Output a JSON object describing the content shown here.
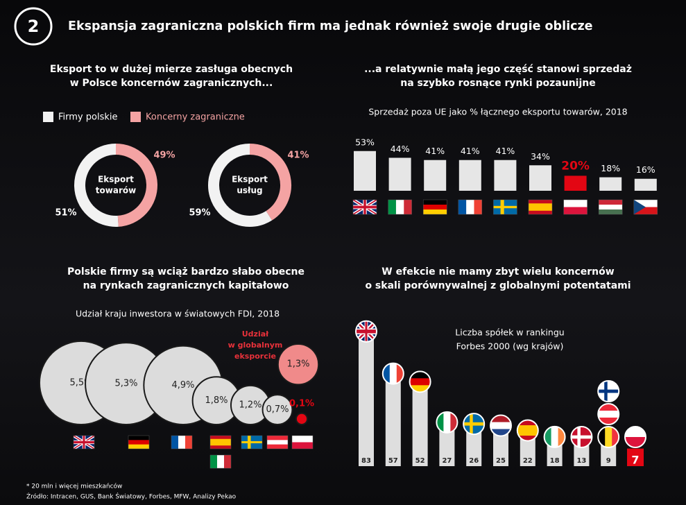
{
  "header": {
    "number": "2",
    "title": "Ekspansja zagraniczna polskich firm ma jednak również swoje drugie oblicze"
  },
  "chart_data": [
    {
      "type": "donut",
      "title": [
        "Eksport to w dużej mierze zasługa obecnych",
        "w Polsce koncernów zagranicznych..."
      ],
      "categories": [
        "Firmy polskie",
        "Koncerny zagraniczne"
      ],
      "colors": [
        "#f2f2f2",
        "#f4a3a3"
      ],
      "donuts": [
        {
          "label": [
            "Eksport",
            "towarów"
          ],
          "values": [
            51,
            49
          ],
          "value_labels": [
            "51%",
            "49%"
          ]
        },
        {
          "label": [
            "Eksport",
            "usług"
          ],
          "values": [
            59,
            41
          ],
          "value_labels": [
            "59%",
            "41%"
          ]
        }
      ]
    },
    {
      "type": "bar",
      "title": [
        "...a relatywnie małą jego część stanowi sprzedaż",
        "na szybko rosnące rynki pozaunijne"
      ],
      "subtitle": "Sprzedaż poza UE jako % łącznego eksportu towarów, 2018",
      "values": [
        53,
        44,
        41,
        41,
        41,
        34,
        20,
        18,
        16
      ],
      "value_labels": [
        "53%",
        "44%",
        "41%",
        "41%",
        "41%",
        "34%",
        "20%",
        "18%",
        "16%"
      ],
      "color": "#e6e6e6",
      "colors": [
        "#e6e6e6",
        "#e6e6e6",
        "#e6e6e6",
        "#e6e6e6",
        "#e6e6e6",
        "#e6e6e6",
        "#e30613",
        "#e6e6e6",
        "#e6e6e6"
      ]
    },
    {
      "type": "bubble",
      "title": [
        "Polskie firmy są wciąż bardzo słabo obecne",
        "na rynkach zagranicznych kapitałowo"
      ],
      "subtitle": "Udział kraju inwestora w światowych FDI, 2018",
      "values": [
        5.5,
        5.3,
        4.9,
        1.8,
        1.2,
        0.7,
        0.1
      ],
      "value_labels": [
        "5,5%",
        "5,3%",
        "4,9%",
        "1,8%",
        "1,2%",
        "0,7%",
        "0,1%"
      ],
      "color": "#dcdcdc",
      "colors": [
        "#dcdcdc",
        "#dcdcdc",
        "#dcdcdc",
        "#dcdcdc",
        "#dcdcdc",
        "#dcdcdc",
        "#e30613"
      ],
      "annotation": [
        "Udział",
        "w globalnym",
        "eksporcie"
      ],
      "annotation_value": 1.3,
      "annotation_value_label": "1,3%",
      "annotation_color": "#f08a8a"
    },
    {
      "type": "lollipop",
      "title": [
        "W efekcie nie mamy zbyt wielu koncernów",
        "o skali porównywalnej z globalnymi potentatami"
      ],
      "subtitle": [
        "Liczba spółek w rankingu",
        "Forbes 2000 (wg krajów)"
      ],
      "values": [
        83,
        57,
        52,
        27,
        26,
        25,
        22,
        18,
        13,
        9,
        7
      ],
      "color": "#dedede",
      "colors": [
        "#dedede",
        "#dedede",
        "#dedede",
        "#dedede",
        "#dedede",
        "#dedede",
        "#dedede",
        "#dedede",
        "#dedede",
        "#dedede",
        "#e30613"
      ]
    }
  ],
  "footnote": [
    "* 20 mln i więcej mieszkańców",
    "Źródło: Intracen, GUS, Bank Światowy, Forbes, MFW,  Analizy Pekao"
  ]
}
